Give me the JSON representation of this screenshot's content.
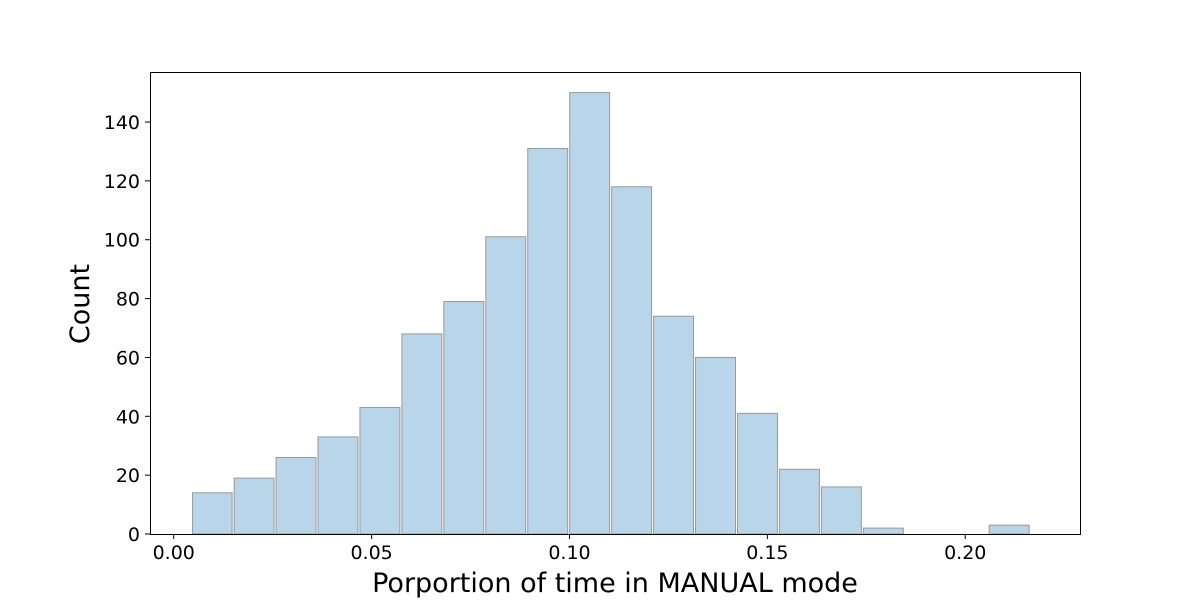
{
  "chart_data": {
    "type": "bar",
    "title": "",
    "xlabel": "Porportion of time in MANUAL mode",
    "ylabel": "Count",
    "xlim": [
      -0.006,
      0.229
    ],
    "ylim": [
      0,
      157
    ],
    "x_ticks": [
      0.0,
      0.05,
      0.1,
      0.15,
      0.2
    ],
    "x_tick_labels": [
      "0.00",
      "0.05",
      "0.10",
      "0.15",
      "0.20"
    ],
    "y_ticks": [
      0,
      20,
      40,
      60,
      80,
      100,
      120,
      140
    ],
    "y_tick_labels": [
      "0",
      "20",
      "40",
      "60",
      "80",
      "100",
      "120",
      "140"
    ],
    "grid": false,
    "legend": "none",
    "bar_color": "#b9d5e9",
    "bar_edge_color": "#999999",
    "bins": [
      {
        "start": 0.0045,
        "end": 0.015,
        "count": 14
      },
      {
        "start": 0.015,
        "end": 0.0256,
        "count": 19
      },
      {
        "start": 0.0256,
        "end": 0.0362,
        "count": 26
      },
      {
        "start": 0.0362,
        "end": 0.0468,
        "count": 33
      },
      {
        "start": 0.0468,
        "end": 0.0574,
        "count": 43
      },
      {
        "start": 0.0574,
        "end": 0.068,
        "count": 68
      },
      {
        "start": 0.068,
        "end": 0.0786,
        "count": 79
      },
      {
        "start": 0.0786,
        "end": 0.0892,
        "count": 101
      },
      {
        "start": 0.0892,
        "end": 0.0998,
        "count": 131
      },
      {
        "start": 0.0998,
        "end": 0.1104,
        "count": 150
      },
      {
        "start": 0.1104,
        "end": 0.121,
        "count": 118
      },
      {
        "start": 0.121,
        "end": 0.1316,
        "count": 74
      },
      {
        "start": 0.1316,
        "end": 0.1422,
        "count": 60
      },
      {
        "start": 0.1422,
        "end": 0.1528,
        "count": 41
      },
      {
        "start": 0.1528,
        "end": 0.1634,
        "count": 22
      },
      {
        "start": 0.1634,
        "end": 0.174,
        "count": 16
      },
      {
        "start": 0.174,
        "end": 0.1846,
        "count": 2
      },
      {
        "start": 0.1846,
        "end": 0.1952,
        "count": 0
      },
      {
        "start": 0.1952,
        "end": 0.2058,
        "count": 0
      },
      {
        "start": 0.2058,
        "end": 0.2164,
        "count": 3
      }
    ]
  }
}
